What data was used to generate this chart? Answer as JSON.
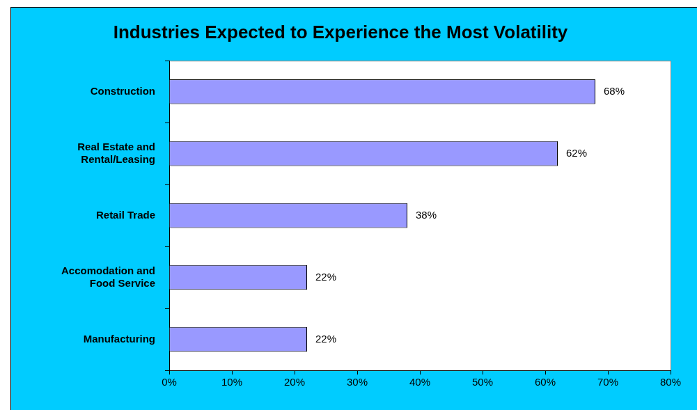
{
  "chart_data": {
    "type": "bar",
    "orientation": "horizontal",
    "title": "Industries Expected to Experience the Most Volatility",
    "categories": [
      "Construction",
      "Real Estate and\nRental/Leasing",
      "Retail Trade",
      "Accomodation and\nFood Service",
      "Manufacturing"
    ],
    "values": [
      68,
      62,
      38,
      22,
      22
    ],
    "value_labels": [
      "68%",
      "62%",
      "38%",
      "22%",
      "22%"
    ],
    "color": "#9999ff",
    "xlim": [
      0,
      80
    ],
    "xticks": [
      {
        "value": 0,
        "label": "0%"
      },
      {
        "value": 10,
        "label": "10%"
      },
      {
        "value": 20,
        "label": "20%"
      },
      {
        "value": 30,
        "label": "30%"
      },
      {
        "value": 40,
        "label": "40%"
      },
      {
        "value": 50,
        "label": "50%"
      },
      {
        "value": 60,
        "label": "60%"
      },
      {
        "value": 70,
        "label": "70%"
      },
      {
        "value": 80,
        "label": "80%"
      }
    ],
    "grid": false,
    "legend": false
  }
}
